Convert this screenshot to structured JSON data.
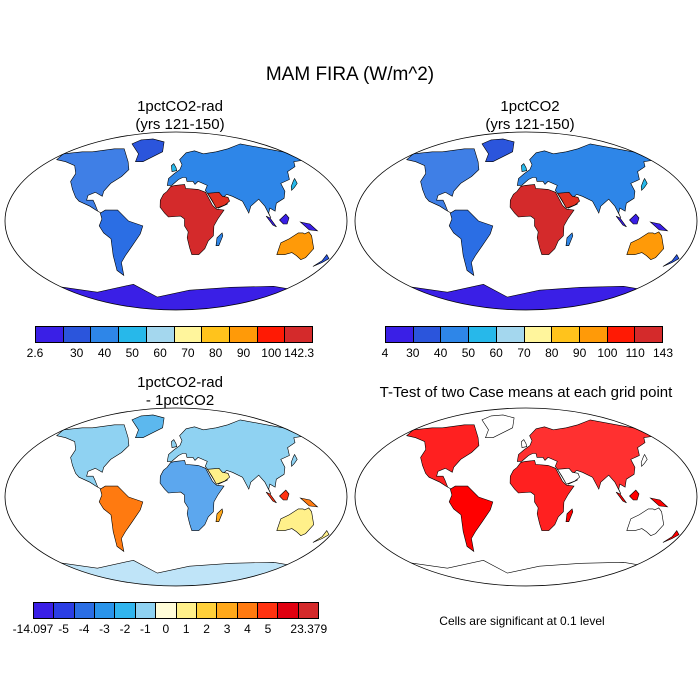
{
  "title": "MAM FIRA (W/m^2)",
  "panels": {
    "tl": {
      "title_line1": "1pctCO2-rad",
      "title_line2": "(yrs 121-150)"
    },
    "tr": {
      "title_line1": "1pctCO2",
      "title_line2": "(yrs 121-150)"
    },
    "bl": {
      "title_line1": "1pctCO2-rad",
      "title_line2": "- 1pctCO2"
    },
    "br": {
      "title_line1": "T-Test of two Case means at each grid point"
    }
  },
  "colorbars": {
    "tl": {
      "colors": [
        "#3a1fe6",
        "#2b55dc",
        "#2e86e8",
        "#27b8ea",
        "#a4d7ee",
        "#fff59c",
        "#ffc31c",
        "#ff9a08",
        "#ff1a04",
        "#d42a2b"
      ],
      "labels": [
        "2.6",
        "30",
        "40",
        "50",
        "60",
        "70",
        "80",
        "90",
        "100",
        "142.3"
      ]
    },
    "tr": {
      "colors": [
        "#3a1fe6",
        "#2b55dc",
        "#2e86e8",
        "#27b8ea",
        "#a4d7ee",
        "#fff59c",
        "#ffc31c",
        "#ff9a08",
        "#ff1a04",
        "#d42a2b"
      ],
      "labels": [
        "4",
        "30",
        "40",
        "50",
        "60",
        "70",
        "80",
        "90",
        "100",
        "110",
        "143"
      ]
    },
    "bl": {
      "colors": [
        "#3a1fe6",
        "#2b3ee4",
        "#2b6ee4",
        "#2a94ea",
        "#31b5ee",
        "#8fd2f2",
        "#fffcd8",
        "#fff08a",
        "#ffd03a",
        "#ffa81a",
        "#ff7a10",
        "#ff3210",
        "#e00010",
        "#d42a2b"
      ],
      "labels": [
        "-14.097",
        "-5",
        "-4",
        "-3",
        "-2",
        "-1",
        "0",
        "1",
        "2",
        "3",
        "4",
        "5",
        "23.379"
      ]
    }
  },
  "note": "Cells are significant at 0.1 level",
  "colors": {
    "ocean": "#ffffff",
    "coast": "#000000",
    "significant": "#ff0000"
  }
}
